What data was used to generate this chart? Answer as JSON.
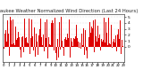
{
  "title": "Milwaukee Weather Normalized Wind Direction (Last 24 Hours)",
  "background_color": "#ffffff",
  "plot_bg_color": "#ffffff",
  "bar_color": "#dd0000",
  "grid_color": "#bbbbbb",
  "num_points": 288,
  "ylim": [
    -2.5,
    5.5
  ],
  "yticks": [
    0,
    1,
    2,
    3,
    4,
    5
  ],
  "title_fontsize": 3.8,
  "tick_fontsize": 3.2,
  "num_xticks": 24
}
